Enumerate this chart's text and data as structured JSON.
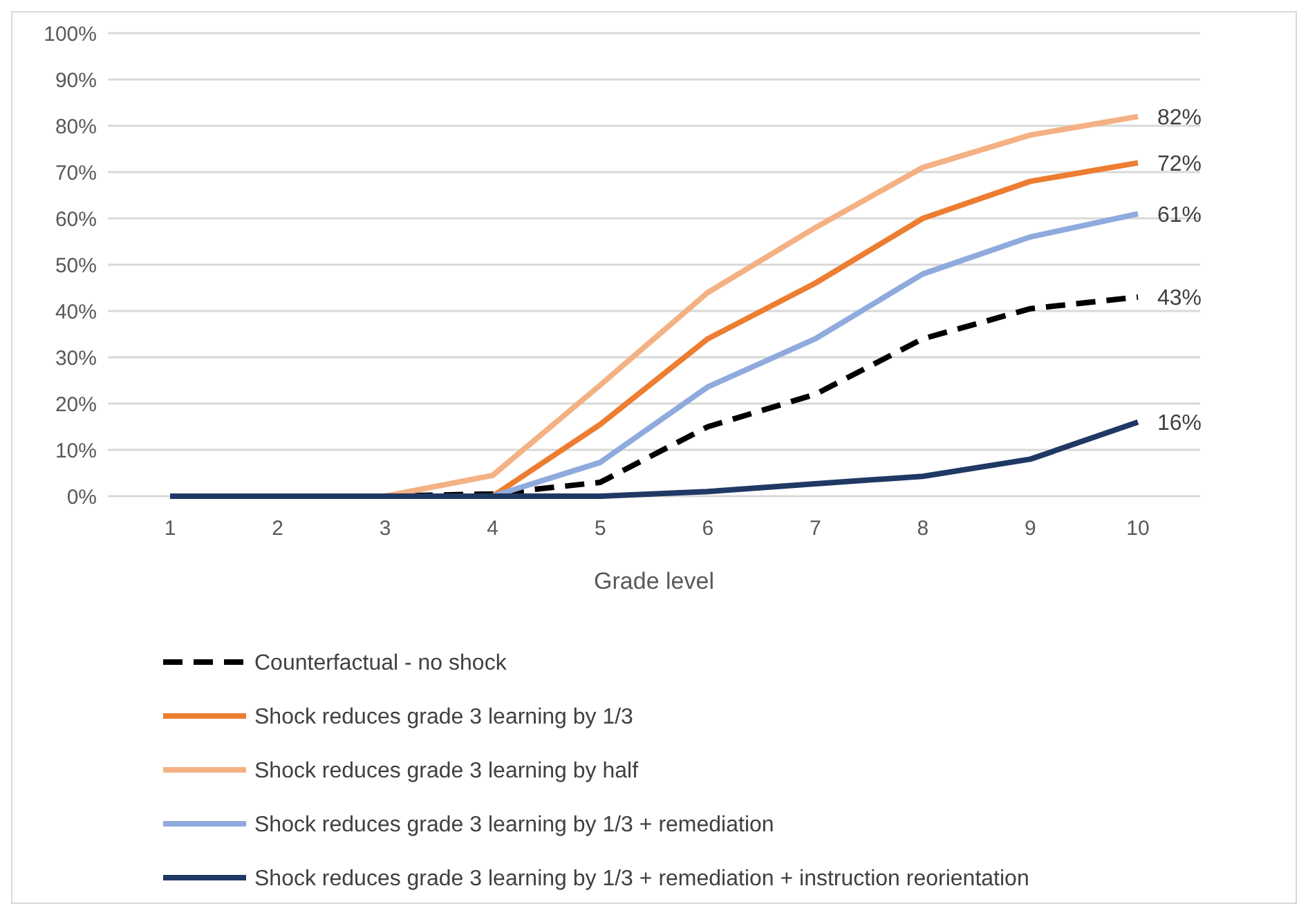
{
  "chart_data": {
    "type": "line",
    "xlabel": "Grade level",
    "categories": [
      "1",
      "2",
      "3",
      "4",
      "5",
      "6",
      "7",
      "8",
      "9",
      "10"
    ],
    "ylim": [
      0,
      100
    ],
    "yticks": [
      {
        "value": 0,
        "label": "0%"
      },
      {
        "value": 10,
        "label": "10%"
      },
      {
        "value": 20,
        "label": "20%"
      },
      {
        "value": 30,
        "label": "30%"
      },
      {
        "value": 40,
        "label": "40%"
      },
      {
        "value": 50,
        "label": "50%"
      },
      {
        "value": 60,
        "label": "60%"
      },
      {
        "value": 70,
        "label": "70%"
      },
      {
        "value": 80,
        "label": "80%"
      },
      {
        "value": 90,
        "label": "90%"
      },
      {
        "value": 100,
        "label": "100%"
      }
    ],
    "grid": "y",
    "legend": "bottom",
    "marker": "none",
    "series": [
      {
        "name": "Counterfactual - no shock",
        "color": "#000000",
        "line_style": "dashed",
        "values": [
          0,
          0,
          0,
          0.5,
          3,
          15,
          22,
          34,
          40.5,
          43
        ],
        "value_labels": [
          null,
          null,
          null,
          null,
          null,
          null,
          null,
          null,
          null,
          "43%"
        ]
      },
      {
        "name": "Shock reduces grade 3 learning by 1/3",
        "color": "#ed7d31",
        "line_style": "solid",
        "values": [
          0,
          0,
          0,
          0,
          15.5,
          34,
          46,
          60,
          68,
          72
        ],
        "value_labels": [
          null,
          null,
          null,
          null,
          null,
          null,
          null,
          null,
          null,
          "72%"
        ]
      },
      {
        "name": "Shock reduces grade 3 learning by half",
        "color": "#f4b183",
        "line_style": "solid",
        "values": [
          0,
          0,
          0,
          4.5,
          24,
          44,
          58,
          71,
          78,
          82
        ],
        "value_labels": [
          null,
          null,
          null,
          null,
          null,
          null,
          null,
          null,
          null,
          "82%"
        ]
      },
      {
        "name": "Shock reduces grade 3 learning by 1/3 + remediation",
        "color": "#8faadc",
        "line_style": "solid",
        "values": [
          0,
          0,
          0,
          0,
          7.3,
          23.6,
          34,
          48,
          56,
          61
        ],
        "value_labels": [
          null,
          null,
          null,
          null,
          null,
          null,
          null,
          null,
          null,
          "61%"
        ]
      },
      {
        "name": "Shock reduces grade 3 learning by 1/3 + remediation + instruction reorientation",
        "color": "#203864",
        "line_style": "solid",
        "values": [
          0,
          0,
          0,
          0,
          0,
          1,
          2.7,
          4.3,
          8,
          16
        ],
        "value_labels": [
          null,
          null,
          null,
          null,
          null,
          null,
          null,
          null,
          null,
          "16%"
        ]
      }
    ]
  }
}
